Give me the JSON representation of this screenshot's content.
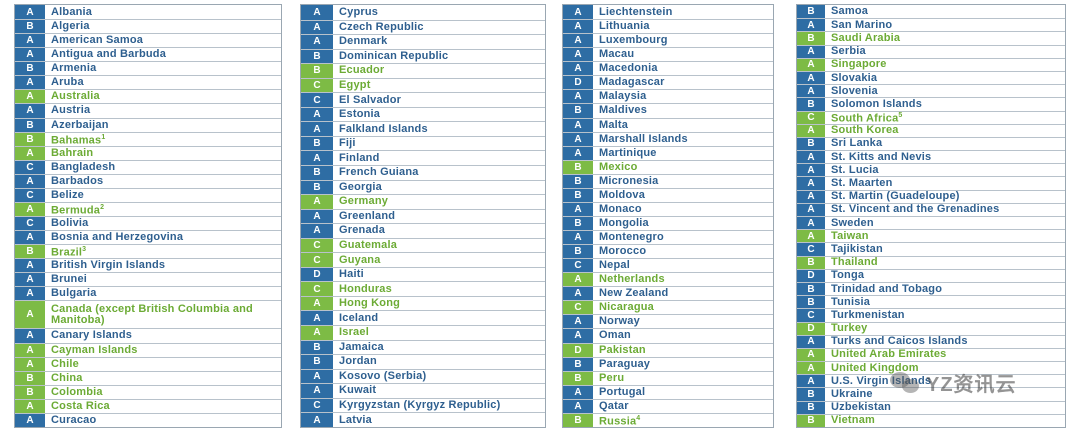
{
  "columns": [
    [
      {
        "g": "A",
        "n": "Albania",
        "c": "blue"
      },
      {
        "g": "B",
        "n": "Algeria",
        "c": "blue"
      },
      {
        "g": "A",
        "n": "American Samoa",
        "c": "blue"
      },
      {
        "g": "A",
        "n": "Antigua and Barbuda",
        "c": "blue"
      },
      {
        "g": "B",
        "n": "Armenia",
        "c": "blue"
      },
      {
        "g": "A",
        "n": "Aruba",
        "c": "blue"
      },
      {
        "g": "A",
        "n": "Australia",
        "c": "green"
      },
      {
        "g": "A",
        "n": "Austria",
        "c": "blue"
      },
      {
        "g": "B",
        "n": "Azerbaijan",
        "c": "blue"
      },
      {
        "g": "B",
        "n": "Bahamas",
        "sup": "1",
        "c": "green"
      },
      {
        "g": "A",
        "n": "Bahrain",
        "c": "green"
      },
      {
        "g": "C",
        "n": "Bangladesh",
        "c": "blue"
      },
      {
        "g": "A",
        "n": "Barbados",
        "c": "blue"
      },
      {
        "g": "C",
        "n": "Belize",
        "c": "blue"
      },
      {
        "g": "A",
        "n": "Bermuda",
        "sup": "2",
        "c": "green"
      },
      {
        "g": "C",
        "n": "Bolivia",
        "c": "blue"
      },
      {
        "g": "A",
        "n": "Bosnia and Herzegovina",
        "c": "blue"
      },
      {
        "g": "B",
        "n": "Brazil",
        "sup": "3",
        "c": "green"
      },
      {
        "g": "A",
        "n": "British Virgin Islands",
        "c": "blue"
      },
      {
        "g": "A",
        "n": "Brunei",
        "c": "blue"
      },
      {
        "g": "A",
        "n": "Bulgaria",
        "c": "blue"
      },
      {
        "g": "A",
        "n": "Canada (except British Columbia and Manitoba)",
        "c": "green",
        "tall": true
      },
      {
        "g": "A",
        "n": "Canary Islands",
        "c": "blue"
      },
      {
        "g": "A",
        "n": "Cayman Islands",
        "c": "green"
      },
      {
        "g": "A",
        "n": "Chile",
        "c": "green"
      },
      {
        "g": "B",
        "n": "China",
        "c": "green"
      },
      {
        "g": "B",
        "n": "Colombia",
        "c": "green"
      },
      {
        "g": "A",
        "n": "Costa Rica",
        "c": "green"
      },
      {
        "g": "A",
        "n": "Curacao",
        "c": "blue"
      }
    ],
    [
      {
        "g": "A",
        "n": "Cyprus",
        "c": "blue"
      },
      {
        "g": "A",
        "n": "Czech Republic",
        "c": "blue"
      },
      {
        "g": "A",
        "n": "Denmark",
        "c": "blue"
      },
      {
        "g": "B",
        "n": "Dominican Republic",
        "c": "blue"
      },
      {
        "g": "B",
        "n": "Ecuador",
        "c": "green"
      },
      {
        "g": "C",
        "n": "Egypt",
        "c": "green"
      },
      {
        "g": "C",
        "n": "El Salvador",
        "c": "blue"
      },
      {
        "g": "A",
        "n": "Estonia",
        "c": "blue"
      },
      {
        "g": "A",
        "n": "Falkland Islands",
        "c": "blue"
      },
      {
        "g": "B",
        "n": "Fiji",
        "c": "blue"
      },
      {
        "g": "A",
        "n": "Finland",
        "c": "blue"
      },
      {
        "g": "B",
        "n": "French Guiana",
        "c": "blue"
      },
      {
        "g": "B",
        "n": "Georgia",
        "c": "blue"
      },
      {
        "g": "A",
        "n": "Germany",
        "c": "green"
      },
      {
        "g": "A",
        "n": "Greenland",
        "c": "blue"
      },
      {
        "g": "A",
        "n": "Grenada",
        "c": "blue"
      },
      {
        "g": "C",
        "n": "Guatemala",
        "c": "green"
      },
      {
        "g": "C",
        "n": "Guyana",
        "c": "green"
      },
      {
        "g": "D",
        "n": "Haiti",
        "c": "blue"
      },
      {
        "g": "C",
        "n": "Honduras",
        "c": "green"
      },
      {
        "g": "A",
        "n": "Hong Kong",
        "c": "green"
      },
      {
        "g": "A",
        "n": "Iceland",
        "c": "blue"
      },
      {
        "g": "A",
        "n": "Israel",
        "c": "green"
      },
      {
        "g": "B",
        "n": "Jamaica",
        "c": "blue"
      },
      {
        "g": "B",
        "n": "Jordan",
        "c": "blue"
      },
      {
        "g": "A",
        "n": "Kosovo (Serbia)",
        "c": "blue"
      },
      {
        "g": "A",
        "n": "Kuwait",
        "c": "blue"
      },
      {
        "g": "C",
        "n": "Kyrgyzstan (Kyrgyz Republic)",
        "c": "blue"
      },
      {
        "g": "A",
        "n": "Latvia",
        "c": "blue"
      }
    ],
    [
      {
        "g": "A",
        "n": "Liechtenstein",
        "c": "blue"
      },
      {
        "g": "A",
        "n": "Lithuania",
        "c": "blue"
      },
      {
        "g": "A",
        "n": "Luxembourg",
        "c": "blue"
      },
      {
        "g": "A",
        "n": "Macau",
        "c": "blue"
      },
      {
        "g": "A",
        "n": "Macedonia",
        "c": "blue"
      },
      {
        "g": "D",
        "n": "Madagascar",
        "c": "blue"
      },
      {
        "g": "A",
        "n": "Malaysia",
        "c": "blue"
      },
      {
        "g": "B",
        "n": "Maldives",
        "c": "blue"
      },
      {
        "g": "A",
        "n": "Malta",
        "c": "blue"
      },
      {
        "g": "A",
        "n": "Marshall Islands",
        "c": "blue"
      },
      {
        "g": "A",
        "n": "Martinique",
        "c": "blue"
      },
      {
        "g": "B",
        "n": "Mexico",
        "c": "green"
      },
      {
        "g": "B",
        "n": "Micronesia",
        "c": "blue"
      },
      {
        "g": "B",
        "n": "Moldova",
        "c": "blue"
      },
      {
        "g": "A",
        "n": "Monaco",
        "c": "blue"
      },
      {
        "g": "B",
        "n": "Mongolia",
        "c": "blue"
      },
      {
        "g": "A",
        "n": "Montenegro",
        "c": "blue"
      },
      {
        "g": "B",
        "n": "Morocco",
        "c": "blue"
      },
      {
        "g": "C",
        "n": "Nepal",
        "c": "blue"
      },
      {
        "g": "A",
        "n": "Netherlands",
        "c": "green"
      },
      {
        "g": "A",
        "n": "New Zealand",
        "c": "blue"
      },
      {
        "g": "C",
        "n": "Nicaragua",
        "c": "green"
      },
      {
        "g": "A",
        "n": "Norway",
        "c": "blue"
      },
      {
        "g": "A",
        "n": "Oman",
        "c": "blue"
      },
      {
        "g": "D",
        "n": "Pakistan",
        "c": "green"
      },
      {
        "g": "B",
        "n": "Paraguay",
        "c": "blue"
      },
      {
        "g": "B",
        "n": "Peru",
        "c": "green"
      },
      {
        "g": "A",
        "n": "Portugal",
        "c": "blue"
      },
      {
        "g": "A",
        "n": "Qatar",
        "c": "blue"
      },
      {
        "g": "B",
        "n": "Russia",
        "sup": "4",
        "c": "green"
      }
    ],
    [
      {
        "g": "B",
        "n": "Samoa",
        "c": "blue"
      },
      {
        "g": "A",
        "n": "San Marino",
        "c": "blue"
      },
      {
        "g": "B",
        "n": "Saudi Arabia",
        "c": "green"
      },
      {
        "g": "A",
        "n": "Serbia",
        "c": "blue"
      },
      {
        "g": "A",
        "n": "Singapore",
        "c": "green"
      },
      {
        "g": "A",
        "n": "Slovakia",
        "c": "blue"
      },
      {
        "g": "A",
        "n": "Slovenia",
        "c": "blue"
      },
      {
        "g": "B",
        "n": "Solomon Islands",
        "c": "blue"
      },
      {
        "g": "C",
        "n": "South Africa",
        "sup": "5",
        "c": "green"
      },
      {
        "g": "A",
        "n": "South Korea",
        "c": "green"
      },
      {
        "g": "B",
        "n": "Sri Lanka",
        "c": "blue"
      },
      {
        "g": "A",
        "n": "St. Kitts and Nevis",
        "c": "blue"
      },
      {
        "g": "A",
        "n": "St. Lucia",
        "c": "blue"
      },
      {
        "g": "A",
        "n": "St. Maarten",
        "c": "blue"
      },
      {
        "g": "A",
        "n": "St. Martin (Guadeloupe)",
        "c": "blue"
      },
      {
        "g": "A",
        "n": "St. Vincent and the Grenadines",
        "c": "blue"
      },
      {
        "g": "A",
        "n": "Sweden",
        "c": "blue"
      },
      {
        "g": "A",
        "n": "Taiwan",
        "c": "green"
      },
      {
        "g": "C",
        "n": "Tajikistan",
        "c": "blue"
      },
      {
        "g": "B",
        "n": "Thailand",
        "c": "green"
      },
      {
        "g": "D",
        "n": "Tonga",
        "c": "blue"
      },
      {
        "g": "B",
        "n": "Trinidad and Tobago",
        "c": "blue"
      },
      {
        "g": "B",
        "n": "Tunisia",
        "c": "blue"
      },
      {
        "g": "C",
        "n": "Turkmenistan",
        "c": "blue"
      },
      {
        "g": "D",
        "n": "Turkey",
        "c": "green"
      },
      {
        "g": "A",
        "n": "Turks and Caicos Islands",
        "c": "blue"
      },
      {
        "g": "A",
        "n": "United Arab Emirates",
        "c": "green"
      },
      {
        "g": "A",
        "n": "United Kingdom",
        "c": "green"
      },
      {
        "g": "A",
        "n": "U.S. Virgin Islands",
        "c": "blue"
      },
      {
        "g": "B",
        "n": "Ukraine",
        "c": "blue"
      },
      {
        "g": "B",
        "n": "Uzbekistan",
        "c": "blue"
      },
      {
        "g": "B",
        "n": "Vietnam",
        "c": "green"
      }
    ]
  ],
  "watermark": "YZ资讯云",
  "colors": {
    "blue": "#2e6da4",
    "green": "#7dbb45"
  }
}
